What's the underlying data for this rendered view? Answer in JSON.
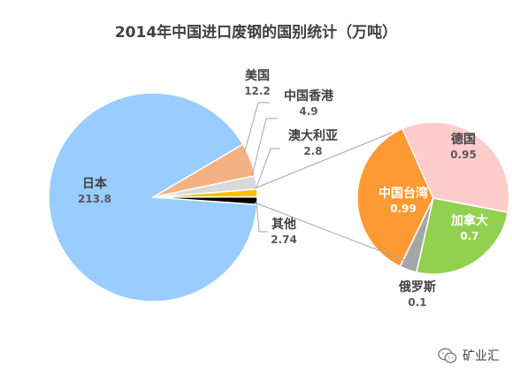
{
  "chart_data": {
    "type": "pie",
    "title": "2014年中国进口废钢的国别统计（万吨）",
    "main_pie": {
      "slices": [
        {
          "label": "日本",
          "value": 213.8,
          "color": "#99ccff"
        },
        {
          "label": "美国",
          "value": 12.2,
          "color": "#f4b183"
        },
        {
          "label": "中国香港",
          "value": 4.9,
          "color": "#d9d9d9"
        },
        {
          "label": "澳大利亚",
          "value": 2.8,
          "color": "#ffc000"
        },
        {
          "label": "其他",
          "value": 2.74,
          "color": "#000000"
        }
      ]
    },
    "secondary_pie": {
      "detail_of": "其他",
      "slices": [
        {
          "label": "德国",
          "value": 0.95,
          "color": "#ffcccc"
        },
        {
          "label": "加拿大",
          "value": 0.7,
          "color": "#92d050"
        },
        {
          "label": "俄罗斯",
          "value": 0.1,
          "color": "#a6a6a6"
        },
        {
          "label": "中国台湾",
          "value": 0.99,
          "color": "#ff9933"
        }
      ]
    }
  },
  "labels": {
    "japan": {
      "name": "日本",
      "value": "213.8"
    },
    "usa": {
      "name": "美国",
      "value": "12.2"
    },
    "hongkong": {
      "name": "中国香港",
      "value": "4.9"
    },
    "australia": {
      "name": "澳大利亚",
      "value": "2.8"
    },
    "other": {
      "name": "其他",
      "value": "2.74"
    },
    "germany": {
      "name": "德国",
      "value": "0.95"
    },
    "taiwan": {
      "name": "中国台湾",
      "value": "0.99"
    },
    "canada": {
      "name": "加拿大",
      "value": "0.7"
    },
    "russia": {
      "name": "俄罗斯",
      "value": "0.1"
    }
  },
  "watermark": {
    "text": "矿业汇",
    "icon": "wechat-icon"
  }
}
